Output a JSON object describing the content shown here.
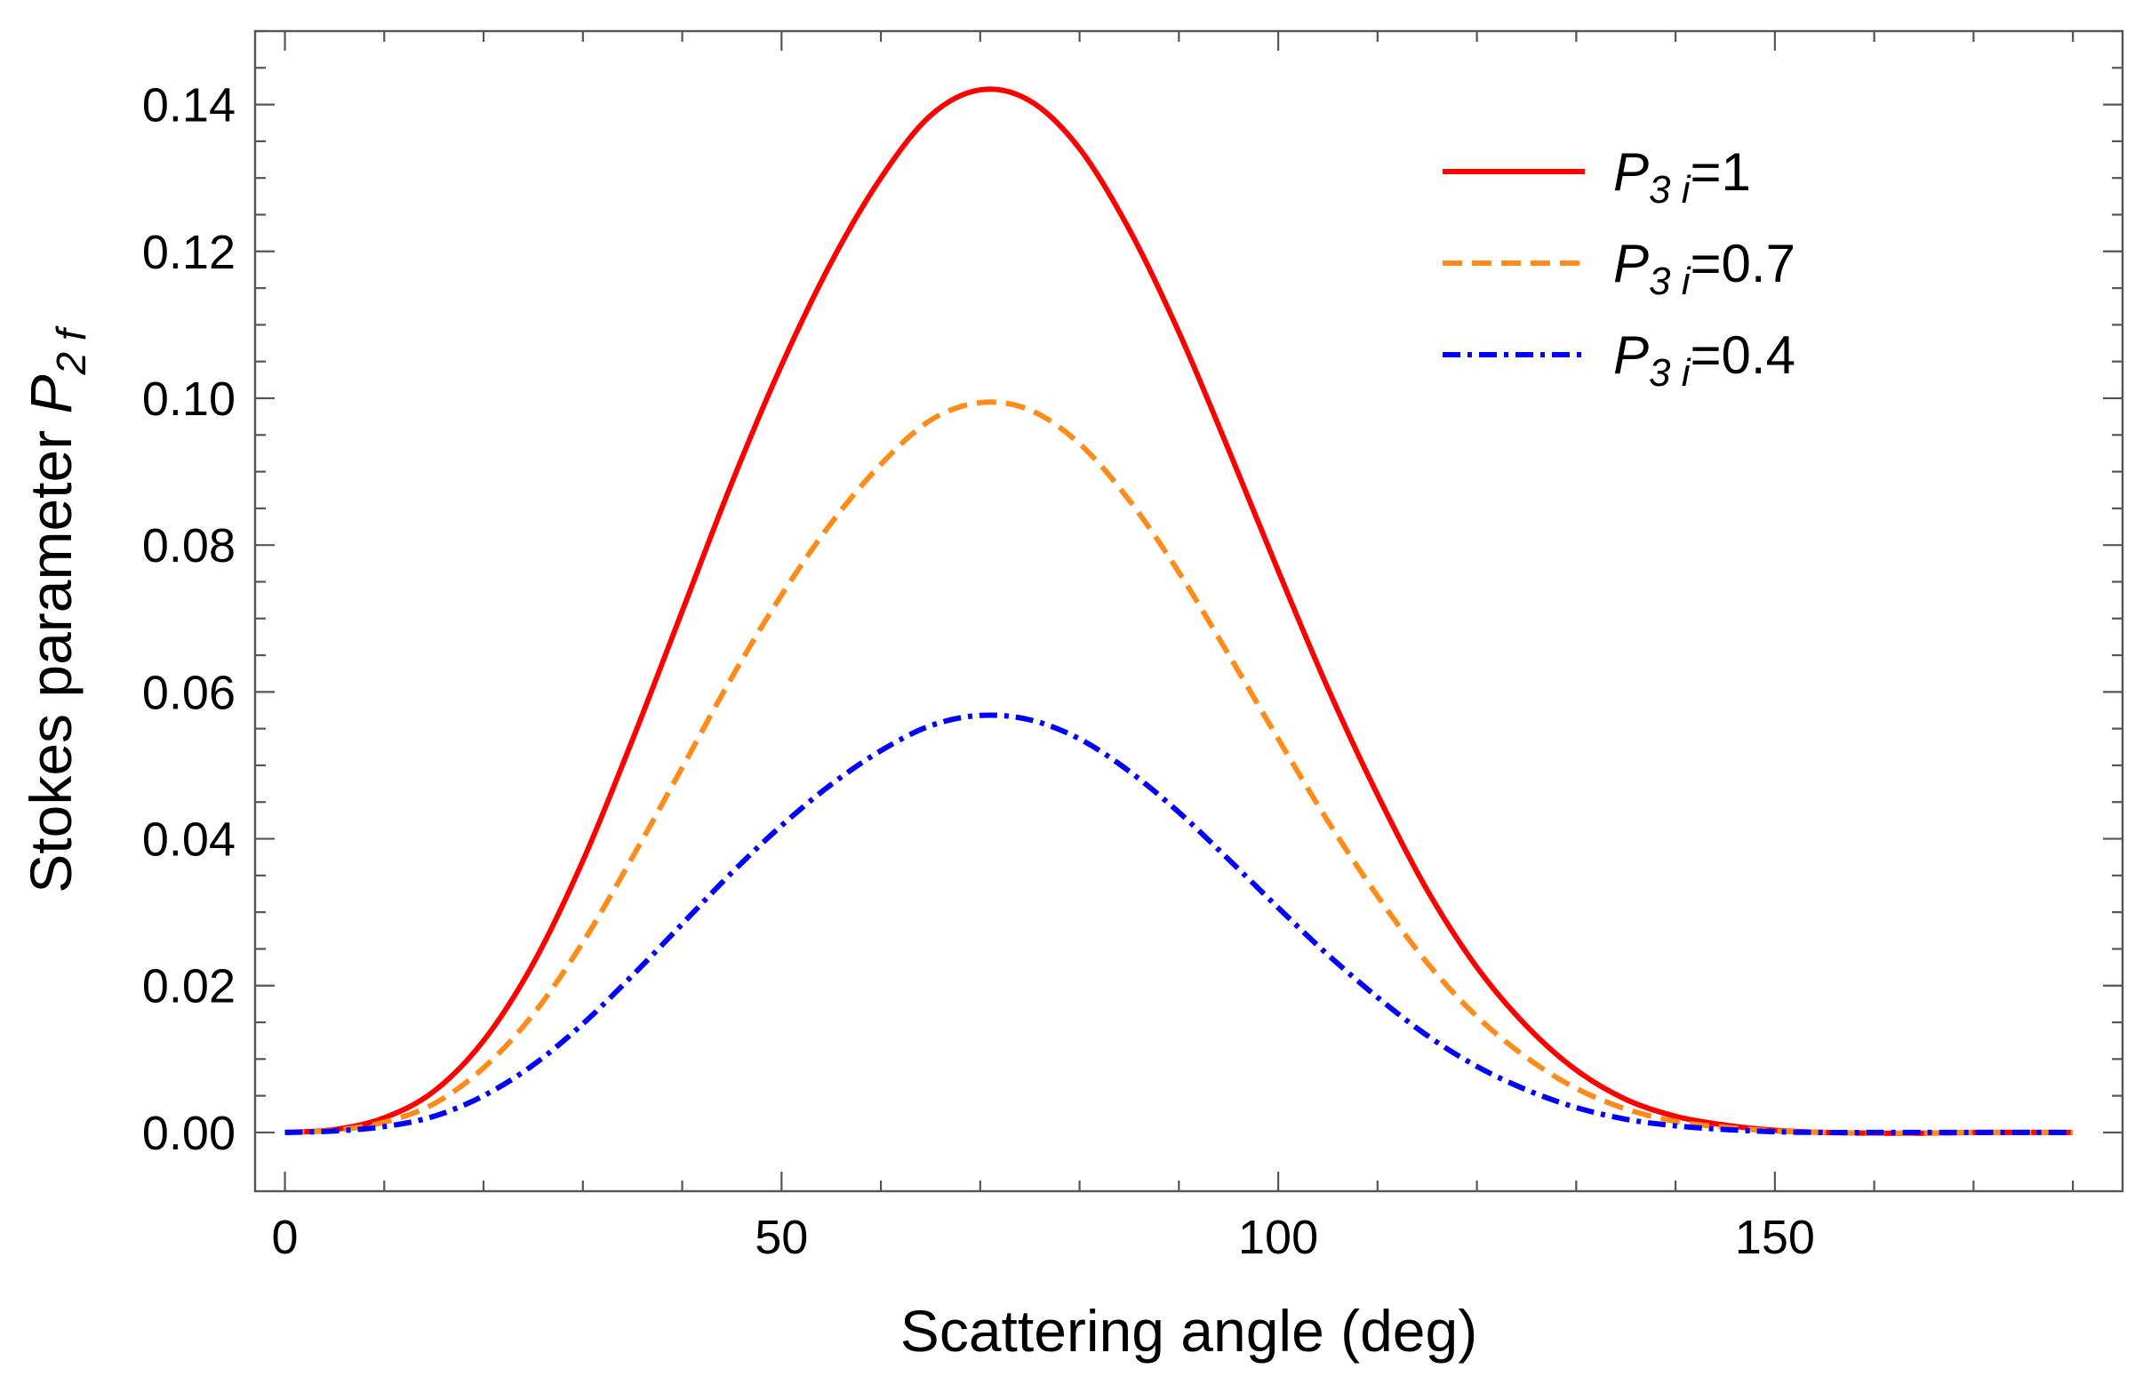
{
  "chart_data": {
    "type": "line",
    "xlabel": "Scattering angle (deg)",
    "ylabel": {
      "prefix": "Stokes parameter ",
      "symbol": "P",
      "subscript": "2 f"
    },
    "xlim": [
      -3,
      185
    ],
    "ylim": [
      -0.008,
      0.15
    ],
    "xticks": [
      {
        "value": 0,
        "label": "0"
      },
      {
        "value": 50,
        "label": "50"
      },
      {
        "value": 100,
        "label": "100"
      },
      {
        "value": 150,
        "label": "150"
      }
    ],
    "yticks": [
      {
        "value": 0.0,
        "label": "0.00"
      },
      {
        "value": 0.02,
        "label": "0.02"
      },
      {
        "value": 0.04,
        "label": "0.04"
      },
      {
        "value": 0.06,
        "label": "0.06"
      },
      {
        "value": 0.08,
        "label": "0.08"
      },
      {
        "value": 0.1,
        "label": "0.10"
      },
      {
        "value": 0.12,
        "label": "0.12"
      },
      {
        "value": 0.14,
        "label": "0.14"
      }
    ],
    "x_minor_step": 10,
    "y_minor_step": 0.005,
    "legend_position": "top-right",
    "x": [
      0,
      5,
      10,
      15,
      20,
      25,
      30,
      35,
      40,
      45,
      50,
      55,
      60,
      65,
      70,
      75,
      80,
      85,
      90,
      95,
      100,
      105,
      110,
      115,
      120,
      125,
      130,
      135,
      140,
      145,
      150,
      155,
      160,
      165,
      170,
      175,
      180
    ],
    "series": [
      {
        "name": "P3i=1",
        "legend": {
          "symbol": "P",
          "subscript": "3 i",
          "value": "=1"
        },
        "color": "#ff0000",
        "style": "solid",
        "values": [
          0.0,
          0.0004,
          0.002,
          0.0056,
          0.0125,
          0.023,
          0.037,
          0.0535,
          0.071,
          0.0885,
          0.1045,
          0.1185,
          0.13,
          0.1385,
          0.142,
          0.1405,
          0.134,
          0.123,
          0.109,
          0.093,
          0.0765,
          0.0605,
          0.046,
          0.033,
          0.0225,
          0.0145,
          0.0085,
          0.0045,
          0.0022,
          0.001,
          0.0003,
          0.0,
          -0.0001,
          -0.0001,
          0.0,
          0.0,
          0.0
        ]
      },
      {
        "name": "P3i=0.7",
        "legend": {
          "symbol": "P",
          "subscript": "3 i",
          "value": "=0.7"
        },
        "color": "#ff8c1a",
        "style": "dashed",
        "values": [
          0.0,
          0.0003,
          0.0014,
          0.0039,
          0.0088,
          0.0161,
          0.0259,
          0.0375,
          0.0497,
          0.062,
          0.0732,
          0.083,
          0.091,
          0.097,
          0.0994,
          0.0984,
          0.0938,
          0.0861,
          0.0763,
          0.0651,
          0.0536,
          0.0424,
          0.0322,
          0.0231,
          0.0158,
          0.0102,
          0.006,
          0.0032,
          0.0015,
          0.0007,
          0.0002,
          0.0,
          -0.0001,
          -0.0001,
          0.0,
          0.0,
          0.0
        ]
      },
      {
        "name": "P3i=0.4",
        "legend": {
          "symbol": "P",
          "subscript": "3 i",
          "value": "=0.4"
        },
        "color": "#0000ff",
        "style": "dashdot",
        "values": [
          0.0,
          0.0002,
          0.0008,
          0.0022,
          0.005,
          0.0092,
          0.0148,
          0.0214,
          0.0284,
          0.0354,
          0.0418,
          0.0474,
          0.052,
          0.0554,
          0.0568,
          0.0562,
          0.0536,
          0.0492,
          0.0436,
          0.0372,
          0.0306,
          0.0242,
          0.0184,
          0.0132,
          0.009,
          0.0058,
          0.0034,
          0.0018,
          0.0009,
          0.0004,
          0.0001,
          0.0,
          0.0,
          0.0,
          0.0,
          0.0,
          0.0
        ]
      }
    ]
  }
}
